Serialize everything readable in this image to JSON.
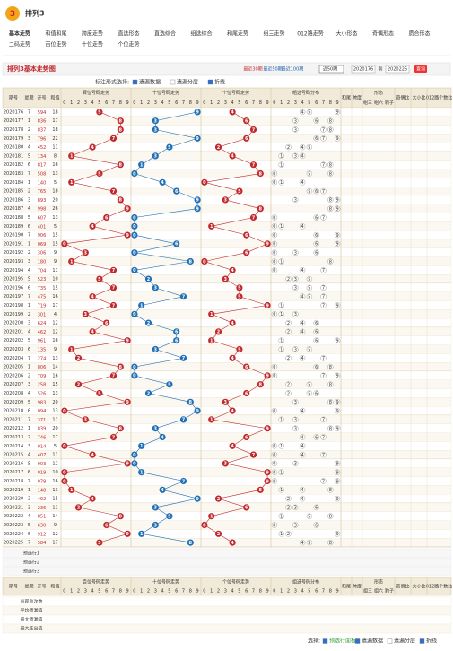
{
  "header": {
    "badge": "3",
    "title": "排列3"
  },
  "tabs": [
    [
      "基本走势",
      "和值和尾",
      "跨度走势",
      "直选形态",
      "直选综合",
      "组选综合",
      "和尾走势",
      "组三走势",
      "012路走势",
      "大小形态",
      "奇偶形态",
      "质合形态"
    ],
    [
      "二码走势",
      "百位走势",
      "十位走势",
      "个位走势"
    ]
  ],
  "toolbar": {
    "title": "排列3基本走势图",
    "recent": [
      "最近30期",
      "最近50期",
      "最近100期"
    ],
    "select": "近50期",
    "from": "2020176",
    "to_label": "到",
    "to": "2020225",
    "query": "查询"
  },
  "options": {
    "label": "标注形式选择:",
    "items": [
      "遗漏数据",
      "遗漏分层",
      "折线"
    ]
  },
  "table": {
    "columns": [
      "期号",
      "星期",
      "开号",
      "和值"
    ],
    "regions": [
      "百位号码走势",
      "十位号码走势",
      "个位号码走势",
      "组选号码分布"
    ],
    "extra": [
      "和尾",
      "跨度",
      "形态",
      "奇偶比",
      "大小比",
      "012路个数比"
    ],
    "forms": [
      "组三",
      "组六",
      "豹子"
    ],
    "digits": [
      0,
      1,
      2,
      3,
      4,
      5,
      6,
      7,
      8,
      9
    ],
    "periods": [
      "2020176",
      "2020177",
      "2020178",
      "2020179",
      "2020180",
      "2020181",
      "2020182",
      "2020183",
      "2020184",
      "2020185",
      "2020186",
      "2020187",
      "2020188",
      "2020189",
      "2020190",
      "2020191",
      "2020192",
      "2020193",
      "2020194",
      "2020195",
      "2020196",
      "2020197",
      "2020198",
      "2020199",
      "2020200",
      "2020201",
      "2020202",
      "2020203",
      "2020204",
      "2020205",
      "2020206",
      "2020207",
      "2020208",
      "2020209",
      "2020210",
      "2020211",
      "2020212",
      "2020213",
      "2020214",
      "2020215",
      "2020216",
      "2020217",
      "2020218",
      "2020219",
      "2020220",
      "2020221",
      "2020222",
      "2020223",
      "2020224",
      "2020225"
    ],
    "weekdays": [
      7,
      1,
      2,
      3,
      4,
      5,
      6,
      7,
      1,
      2,
      3,
      4,
      5,
      6,
      7,
      1,
      2,
      3,
      4,
      5,
      6,
      7,
      1,
      2,
      3,
      4,
      5,
      6,
      7,
      1,
      2,
      3,
      4,
      5,
      6,
      7,
      1,
      2,
      3,
      4,
      5,
      6,
      7,
      1,
      2,
      3,
      4,
      5,
      6,
      7
    ],
    "draws": [
      [
        5,
        9,
        4
      ],
      [
        8,
        3,
        6
      ],
      [
        8,
        3,
        7
      ],
      [
        7,
        9,
        6
      ],
      [
        4,
        5,
        2
      ],
      [
        1,
        3,
        4
      ],
      [
        8,
        1,
        7
      ],
      [
        5,
        0,
        8
      ],
      [
        1,
        4,
        0
      ],
      [
        7,
        6,
        5
      ],
      [
        8,
        9,
        3
      ],
      [
        9,
        9,
        8
      ],
      [
        6,
        0,
        7
      ],
      [
        4,
        0,
        1
      ],
      [
        9,
        0,
        6
      ],
      [
        0,
        6,
        9
      ],
      [
        3,
        0,
        6
      ],
      [
        1,
        8,
        0
      ],
      [
        7,
        0,
        4
      ],
      [
        5,
        2,
        3
      ],
      [
        7,
        3,
        5
      ],
      [
        4,
        7,
        5
      ],
      [
        7,
        1,
        9
      ],
      [
        3,
        0,
        1
      ],
      [
        6,
        2,
        4
      ],
      [
        4,
        6,
        2
      ],
      [
        9,
        6,
        1
      ],
      [
        1,
        3,
        5
      ],
      [
        2,
        7,
        4
      ],
      [
        8,
        0,
        6
      ],
      [
        7,
        0,
        9
      ],
      [
        2,
        5,
        8
      ],
      [
        5,
        2,
        6
      ],
      [
        9,
        8,
        3
      ],
      [
        0,
        9,
        4
      ],
      [
        3,
        7,
        1
      ],
      [
        8,
        3,
        9
      ],
      [
        7,
        4,
        6
      ],
      [
        0,
        1,
        4
      ],
      [
        4,
        0,
        7
      ],
      [
        9,
        0,
        3
      ],
      [
        0,
        1,
        9
      ],
      [
        0,
        7,
        9
      ],
      [
        1,
        4,
        8
      ],
      [
        4,
        9,
        2
      ],
      [
        2,
        3,
        6
      ],
      [
        8,
        5,
        1
      ],
      [
        6,
        3,
        0
      ],
      [
        9,
        1,
        2
      ],
      [
        5,
        8,
        4
      ]
    ],
    "sums": [
      18,
      17,
      18,
      22,
      11,
      8,
      16,
      13,
      5,
      18,
      20,
      26,
      13,
      5,
      15,
      15,
      9,
      9,
      11,
      10,
      15,
      16,
      17,
      4,
      12,
      12,
      16,
      9,
      13,
      14,
      16,
      15,
      13,
      20,
      13,
      11,
      20,
      17,
      5,
      11,
      12,
      10,
      16,
      13,
      15,
      11,
      14,
      9,
      12,
      17
    ],
    "presets": [
      "预选行1",
      "预选行2",
      "预选行3"
    ],
    "stats": [
      "出现总次数",
      "平均遗漏值",
      "最大遗漏值",
      "最大连出值"
    ]
  },
  "footer": {
    "label": "选择:",
    "items": [
      "预选行面板",
      "遗漏数据",
      "遗漏分层",
      "折线"
    ]
  }
}
